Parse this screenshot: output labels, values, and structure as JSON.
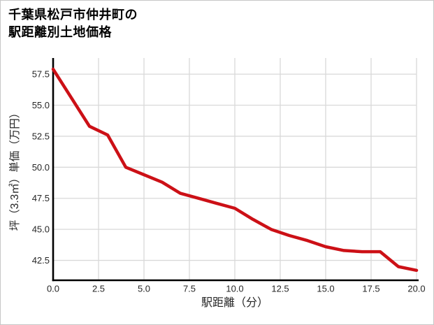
{
  "header": {
    "title_line1": "千葉県松戸市仲井町の",
    "title_line2": "駅距離別土地価格"
  },
  "chart_data": {
    "type": "line",
    "title": "千葉県松戸市仲井町の駅距離別土地価格",
    "xlabel": "駅距離（分）",
    "ylabel": "坪（3.3㎡）単価（万円）",
    "x": [
      0,
      1,
      2,
      3,
      4,
      5,
      6,
      7,
      8,
      9,
      10,
      11,
      12,
      13,
      14,
      15,
      16,
      17,
      18,
      19,
      20
    ],
    "y": [
      57.9,
      55.6,
      53.3,
      52.6,
      50.0,
      49.4,
      48.8,
      47.9,
      47.5,
      47.1,
      46.7,
      45.8,
      45.0,
      44.5,
      44.1,
      43.6,
      43.3,
      43.2,
      43.2,
      42.0,
      41.7
    ],
    "x_ticks": [
      "0.0",
      "2.5",
      "5.0",
      "7.5",
      "10.0",
      "12.5",
      "15.0",
      "17.5",
      "20.0"
    ],
    "y_ticks": [
      "42.5",
      "45.0",
      "47.5",
      "50.0",
      "52.5",
      "55.0",
      "57.5"
    ],
    "xlim": [
      0,
      20
    ],
    "ylim": [
      40.9,
      58.8
    ],
    "grid": true,
    "legend": false
  },
  "colors": {
    "line": "#cc1016",
    "grid": "#d9d9d9",
    "axis": "#000000",
    "tick_text": "#262626",
    "title_text": "#000000",
    "background": "#ffffff",
    "page_border": "#c6c6c6"
  }
}
